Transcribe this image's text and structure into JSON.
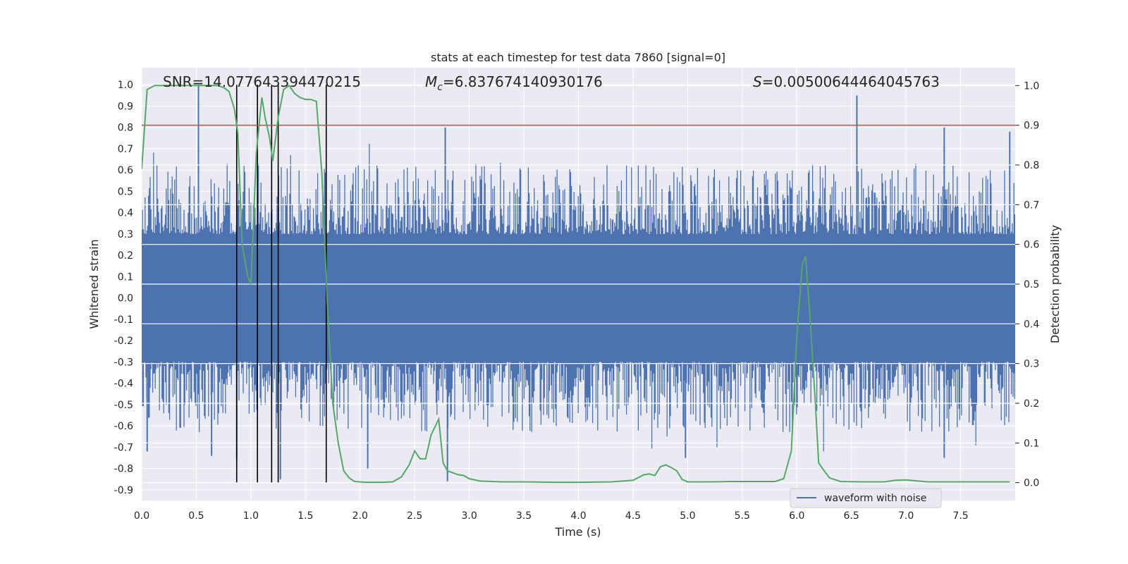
{
  "chart_data": {
    "type": "line",
    "title": "stats at each timestep for test data 7860 [signal=0]",
    "xlabel": "Time (s)",
    "ylabel": "Whitened strain",
    "y2label": "Detection probability",
    "xlim": [
      0.0,
      8.0
    ],
    "ylim": [
      -0.95,
      1.08
    ],
    "y2lim": [
      -0.045,
      1.045
    ],
    "xticks": [
      0.0,
      0.5,
      1.0,
      1.5,
      2.0,
      2.5,
      3.0,
      3.5,
      4.0,
      4.5,
      5.0,
      5.5,
      6.0,
      6.5,
      7.0,
      7.5
    ],
    "xtick_labels": [
      "0.0",
      "0.5",
      "1.0",
      "1.5",
      "2.0",
      "2.5",
      "3.0",
      "3.5",
      "4.0",
      "4.5",
      "5.0",
      "5.5",
      "6.0",
      "6.5",
      "7.0",
      "7.5"
    ],
    "yticks": [
      1.0,
      0.9,
      0.8,
      0.7,
      0.6,
      0.5,
      0.4,
      0.3,
      0.2,
      0.1,
      0.0,
      -0.1,
      -0.2,
      -0.3,
      -0.4,
      -0.5,
      -0.6,
      -0.7,
      -0.8,
      -0.9
    ],
    "ytick_labels": [
      "1.0",
      "0.9",
      "0.8",
      "0.7",
      "0.6",
      "0.5",
      "0.4",
      "0.3",
      "0.2",
      "0.1",
      "0.0",
      "-0.1",
      "-0.2",
      "-0.3",
      "-0.4",
      "-0.5",
      "-0.6",
      "-0.7",
      "-0.8",
      "-0.9"
    ],
    "y2ticks": [
      1.0,
      0.9,
      0.8,
      0.7,
      0.6,
      0.5,
      0.4,
      0.3,
      0.2,
      0.1,
      0.0
    ],
    "y2tick_labels": [
      "1.0",
      "0.9",
      "0.8",
      "0.7",
      "0.6",
      "0.5",
      "0.4",
      "0.3",
      "0.2",
      "0.1",
      "0.0"
    ],
    "annotations": {
      "snr": "SNR=14.077643394470215",
      "mc_symbol": "M",
      "mc_sub": "c",
      "mc_value": "=6.837674140930176",
      "s_symbol": "S",
      "s_value": "=0.005006444640457​63"
    },
    "legend": {
      "position": "lower-right",
      "entries": [
        "waveform with noise"
      ]
    },
    "series": [
      {
        "name": "waveform with noise",
        "kind": "strain",
        "color": "#4c72b0",
        "envelope": {
          "core_abs": 0.27,
          "typical_max": 0.55,
          "typical_min": -0.55
        },
        "spikes": [
          {
            "t": 0.52,
            "v": 1.0
          },
          {
            "t": 2.78,
            "v": 0.8
          },
          {
            "t": 6.55,
            "v": 0.95
          },
          {
            "t": 7.35,
            "v": 0.8
          },
          {
            "t": 7.95,
            "v": 0.78
          },
          {
            "t": 0.05,
            "v": -0.72
          },
          {
            "t": 0.64,
            "v": -0.74
          },
          {
            "t": 0.87,
            "v": -0.76
          },
          {
            "t": 1.27,
            "v": -0.85
          },
          {
            "t": 2.07,
            "v": -0.8
          },
          {
            "t": 2.8,
            "v": -0.86
          },
          {
            "t": 4.98,
            "v": -0.75
          },
          {
            "t": 7.35,
            "v": -0.75
          }
        ]
      },
      {
        "name": "detection probability",
        "kind": "probability",
        "axis": "right",
        "color": "#55a868",
        "x": [
          0.0,
          0.05,
          0.12,
          0.2,
          0.3,
          0.4,
          0.5,
          0.6,
          0.7,
          0.75,
          0.8,
          0.85,
          0.88,
          0.92,
          0.97,
          1.0,
          1.05,
          1.1,
          1.13,
          1.17,
          1.2,
          1.25,
          1.3,
          1.35,
          1.4,
          1.45,
          1.5,
          1.55,
          1.6,
          1.65,
          1.7,
          1.75,
          1.8,
          1.85,
          1.9,
          1.95,
          2.0,
          2.05,
          2.1,
          2.2,
          2.3,
          2.38,
          2.45,
          2.5,
          2.55,
          2.6,
          2.65,
          2.72,
          2.76,
          2.8,
          2.85,
          2.9,
          2.95,
          3.0,
          3.1,
          3.3,
          3.5,
          3.8,
          4.0,
          4.3,
          4.5,
          4.6,
          4.65,
          4.7,
          4.75,
          4.8,
          4.85,
          4.9,
          4.95,
          5.0,
          5.05,
          5.1,
          5.2,
          5.4,
          5.6,
          5.8,
          5.88,
          5.95,
          6.0,
          6.05,
          6.08,
          6.12,
          6.17,
          6.2,
          6.25,
          6.3,
          6.4,
          6.6,
          6.8,
          6.9,
          7.0,
          7.2,
          7.5,
          7.8,
          7.95
        ],
        "y": [
          0.79,
          0.99,
          1.0,
          1.0,
          1.0,
          1.0,
          1.0,
          1.0,
          1.0,
          0.995,
          0.985,
          0.94,
          0.88,
          0.6,
          0.52,
          0.5,
          0.83,
          0.97,
          0.92,
          0.87,
          0.81,
          0.92,
          0.99,
          1.0,
          0.98,
          0.97,
          0.965,
          0.965,
          0.96,
          0.78,
          0.45,
          0.2,
          0.1,
          0.03,
          0.012,
          0.003,
          0.002,
          0.001,
          0.001,
          0.001,
          0.002,
          0.015,
          0.045,
          0.08,
          0.06,
          0.06,
          0.12,
          0.16,
          0.05,
          0.03,
          0.025,
          0.02,
          0.018,
          0.01,
          0.004,
          0.002,
          0.002,
          0.001,
          0.001,
          0.002,
          0.006,
          0.02,
          0.022,
          0.018,
          0.04,
          0.045,
          0.038,
          0.03,
          0.008,
          0.002,
          0.002,
          0.002,
          0.002,
          0.003,
          0.003,
          0.003,
          0.01,
          0.08,
          0.37,
          0.55,
          0.57,
          0.42,
          0.2,
          0.05,
          0.03,
          0.012,
          0.003,
          0.002,
          0.002,
          0.006,
          0.007,
          0.002,
          0.002,
          0.002,
          0.002
        ]
      },
      {
        "name": "threshold",
        "kind": "hline",
        "axis": "right",
        "color": "#c44e52",
        "value": 0.9
      },
      {
        "name": "detections",
        "kind": "vlines",
        "axis": "left",
        "color": "#000000",
        "x": [
          0.87,
          1.06,
          1.19,
          1.25,
          1.69
        ],
        "ymin": -0.865,
        "ymax": 1.0
      }
    ]
  }
}
